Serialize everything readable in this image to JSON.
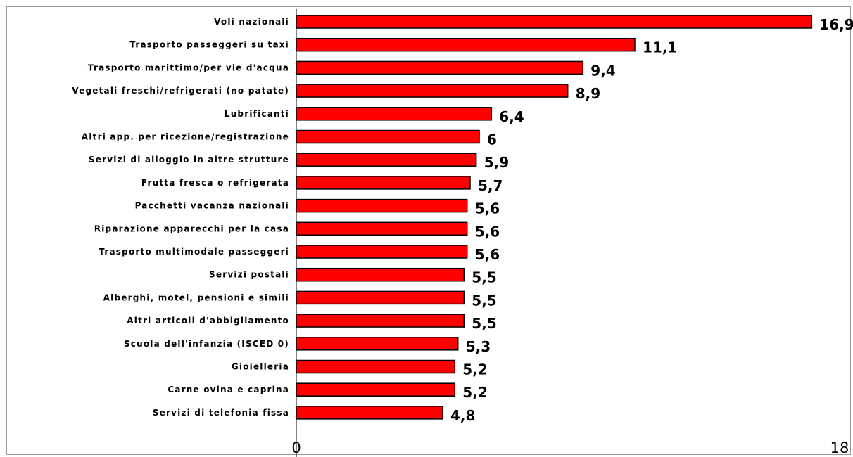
{
  "chart_data": {
    "type": "bar",
    "orientation": "horizontal",
    "categories": [
      "Voli nazionali",
      "Trasporto passeggeri su taxi",
      "Trasporto marittimo/per vie d'acqua",
      "Vegetali freschi/refrigerati (no patate)",
      "Lubrificanti",
      "Altri app. per ricezione/registrazione",
      "Servizi di alloggio in altre strutture",
      "Frutta fresca o refrigerata",
      "Pacchetti vacanza nazionali",
      "Riparazione apparecchi per la casa",
      "Trasporto multimodale passeggeri",
      "Servizi postali",
      "Alberghi, motel, pensioni e simili",
      "Altri articoli d'abbigliamento",
      "Scuola dell'infanzia (ISCED 0)",
      "Gioielleria",
      "Carne ovina e caprina",
      "Servizi di telefonia fissa"
    ],
    "values": [
      16.9,
      11.1,
      9.4,
      8.9,
      6.4,
      6,
      5.9,
      5.7,
      5.6,
      5.6,
      5.6,
      5.5,
      5.5,
      5.5,
      5.3,
      5.2,
      5.2,
      4.8
    ],
    "value_labels": [
      "16,9",
      "11,1",
      "9,4",
      "8,9",
      "6,4",
      "6",
      "5,9",
      "5,7",
      "5,6",
      "5,6",
      "5,6",
      "5,5",
      "5,5",
      "5,5",
      "5,3",
      "5,2",
      "5,2",
      "4,8"
    ],
    "xlim": [
      0,
      18
    ],
    "tick_labels": [
      "0",
      "18"
    ],
    "bar_color": "#ff0000",
    "bar_edge_color": "#000000",
    "grid": false,
    "legend": "none"
  }
}
